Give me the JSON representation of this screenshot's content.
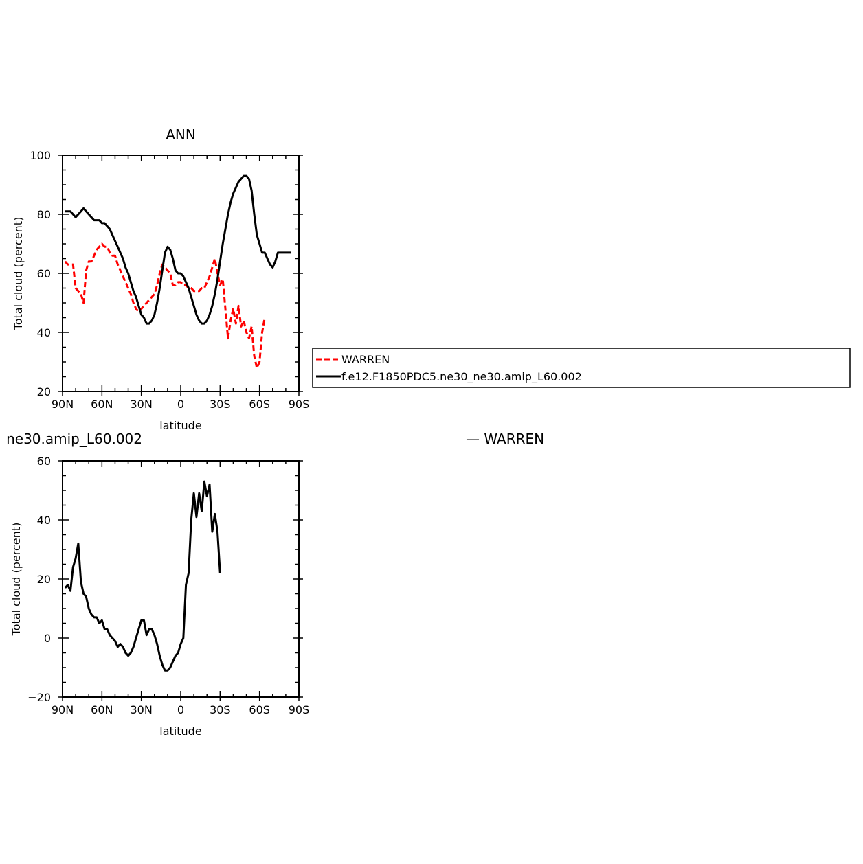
{
  "chart_data": [
    {
      "type": "line",
      "title": "ANN",
      "xlabel": "latitude",
      "ylabel": "Total cloud (percent)",
      "xlim": [
        90,
        -90
      ],
      "ylim": [
        20,
        100
      ],
      "xticks": [
        90,
        60,
        30,
        0,
        -30,
        -60,
        -90
      ],
      "xtick_labels": [
        "90N",
        "60N",
        "30N",
        "0",
        "30S",
        "60S",
        "90S"
      ],
      "yticks": [
        20,
        40,
        60,
        80,
        100
      ],
      "ytick_labels": [
        "20",
        "40",
        "60",
        "80",
        "100"
      ],
      "legend": {
        "entries": [
          "WARREN",
          "f.e12.F1850PDC5.ne30_ne30.amip_L60.002"
        ]
      },
      "series": [
        {
          "name": "WARREN",
          "color": "#ff0000",
          "dash": true,
          "x": [
            88,
            86,
            84,
            82,
            80,
            78,
            76,
            74,
            72,
            70,
            68,
            66,
            64,
            62,
            60,
            58,
            56,
            54,
            52,
            50,
            48,
            46,
            44,
            42,
            40,
            38,
            36,
            34,
            32,
            30,
            28,
            26,
            24,
            22,
            20,
            18,
            16,
            14,
            12,
            10,
            8,
            6,
            4,
            2,
            0,
            -2,
            -4,
            -6,
            -8,
            -10,
            -12,
            -14,
            -16,
            -18,
            -20,
            -22,
            -24,
            -26,
            -28,
            -30,
            -32,
            -34,
            -36,
            -38,
            -40,
            -42,
            -44,
            -46,
            -48,
            -50,
            -52,
            -54,
            -56,
            -58,
            -60,
            -62,
            -64,
            -66,
            -68,
            -70,
            -72,
            -74,
            -76
          ],
          "y": [
            64,
            63,
            63,
            63,
            55,
            54,
            53,
            50,
            61,
            64,
            64,
            66,
            68,
            69,
            70,
            69,
            69,
            67,
            66,
            66,
            63,
            61,
            59,
            57,
            55,
            53,
            50,
            48,
            47,
            48,
            49,
            50,
            51,
            52,
            53,
            56,
            60,
            63,
            62,
            61,
            60,
            56,
            56,
            57,
            57,
            56,
            56,
            55,
            55,
            54,
            54,
            54,
            55,
            55,
            57,
            59,
            62,
            65,
            60,
            56,
            58,
            48,
            38,
            44,
            48,
            43,
            49,
            42,
            44,
            40,
            38,
            42,
            32,
            28,
            30,
            40,
            45,
            45,
            45,
            45,
            45,
            45,
            45
          ],
          "y_trim": 77
        },
        {
          "name": "f.e12.F1850PDC5.ne30_ne30.amip_L60.002",
          "color": "#000000",
          "dash": false,
          "x": [
            88,
            86,
            84,
            82,
            80,
            78,
            76,
            74,
            72,
            70,
            68,
            66,
            64,
            62,
            60,
            58,
            56,
            54,
            52,
            50,
            48,
            46,
            44,
            42,
            40,
            38,
            36,
            34,
            32,
            30,
            28,
            26,
            24,
            22,
            20,
            18,
            16,
            14,
            12,
            10,
            8,
            6,
            4,
            2,
            0,
            -2,
            -4,
            -6,
            -8,
            -10,
            -12,
            -14,
            -16,
            -18,
            -20,
            -22,
            -24,
            -26,
            -28,
            -30,
            -32,
            -34,
            -36,
            -38,
            -40,
            -42,
            -44,
            -46,
            -48,
            -50,
            -52,
            -54,
            -56,
            -58,
            -60,
            -62,
            -64,
            -66,
            -68,
            -70,
            -72,
            -74,
            -76,
            -78,
            -80,
            -82,
            -84,
            -86,
            -88
          ],
          "y": [
            81,
            81,
            81,
            80,
            79,
            80,
            81,
            82,
            81,
            80,
            79,
            78,
            78,
            78,
            77,
            77,
            76,
            75,
            73,
            71,
            69,
            67,
            65,
            62,
            60,
            57,
            54,
            52,
            49,
            46,
            45,
            43,
            43,
            44,
            46,
            50,
            55,
            61,
            67,
            69,
            68,
            65,
            61,
            60,
            60,
            59,
            57,
            55,
            52,
            49,
            46,
            44,
            43,
            43,
            44,
            46,
            49,
            53,
            58,
            64,
            70,
            75,
            80,
            84,
            87,
            89,
            91,
            92,
            93,
            93,
            92,
            88,
            80,
            73,
            70,
            67,
            67,
            65,
            63,
            62,
            64,
            67,
            67,
            67,
            67,
            67,
            67,
            67,
            67
          ],
          "y_trim": 87
        }
      ]
    },
    {
      "type": "line",
      "title": "ne30.amip_L60.002",
      "title_right": "— WARREN",
      "xlabel": "latitude",
      "ylabel": "Total cloud (percent)",
      "xlim": [
        90,
        -90
      ],
      "ylim": [
        -20,
        60
      ],
      "xticks": [
        90,
        60,
        30,
        0,
        -30,
        -60,
        -90
      ],
      "xtick_labels": [
        "90N",
        "60N",
        "30N",
        "0",
        "30S",
        "60S",
        "90S"
      ],
      "yticks": [
        -20,
        0,
        20,
        40,
        60
      ],
      "ytick_labels": [
        "−20",
        "0",
        "20",
        "40",
        "60"
      ],
      "series": [
        {
          "color": "#000000",
          "dash": false,
          "x": [
            88,
            86,
            84,
            82,
            80,
            78,
            76,
            74,
            72,
            70,
            68,
            66,
            64,
            62,
            60,
            58,
            56,
            54,
            52,
            50,
            48,
            46,
            44,
            42,
            40,
            38,
            36,
            34,
            32,
            30,
            28,
            26,
            24,
            22,
            20,
            18,
            16,
            14,
            12,
            10,
            8,
            6,
            4,
            2,
            0,
            -2,
            -4,
            -6,
            -8,
            -10,
            -12,
            -14,
            -16,
            -18,
            -20,
            -22,
            -24,
            -26,
            -28,
            -30,
            -32,
            -34,
            -36,
            -38,
            -40,
            -42,
            -44,
            -46,
            -48,
            -50,
            -52,
            -54,
            -56,
            -58,
            -60,
            -62,
            -64,
            -66,
            -68,
            -70,
            -72,
            -74,
            -76
          ],
          "y": [
            17,
            18,
            16,
            24,
            27,
            32,
            19,
            15,
            14,
            10,
            8,
            7,
            7,
            5,
            6,
            3,
            3,
            1,
            0,
            -1,
            -3,
            -2,
            -3,
            -5,
            -6,
            -5,
            -3,
            0,
            3,
            6,
            6,
            1,
            3,
            3,
            1,
            -2,
            -6,
            -9,
            -11,
            -11,
            -10,
            -8,
            -6,
            -5,
            -2,
            0,
            18,
            22,
            40,
            49,
            41,
            49,
            43,
            53,
            48,
            52,
            36,
            42,
            36,
            22,
            22,
            22,
            22,
            22,
            22,
            22,
            22,
            22,
            22,
            22,
            22,
            22,
            22,
            22,
            22,
            22,
            22,
            22,
            22,
            22,
            22,
            22,
            22
          ],
          "y_trim": 60
        }
      ]
    }
  ]
}
